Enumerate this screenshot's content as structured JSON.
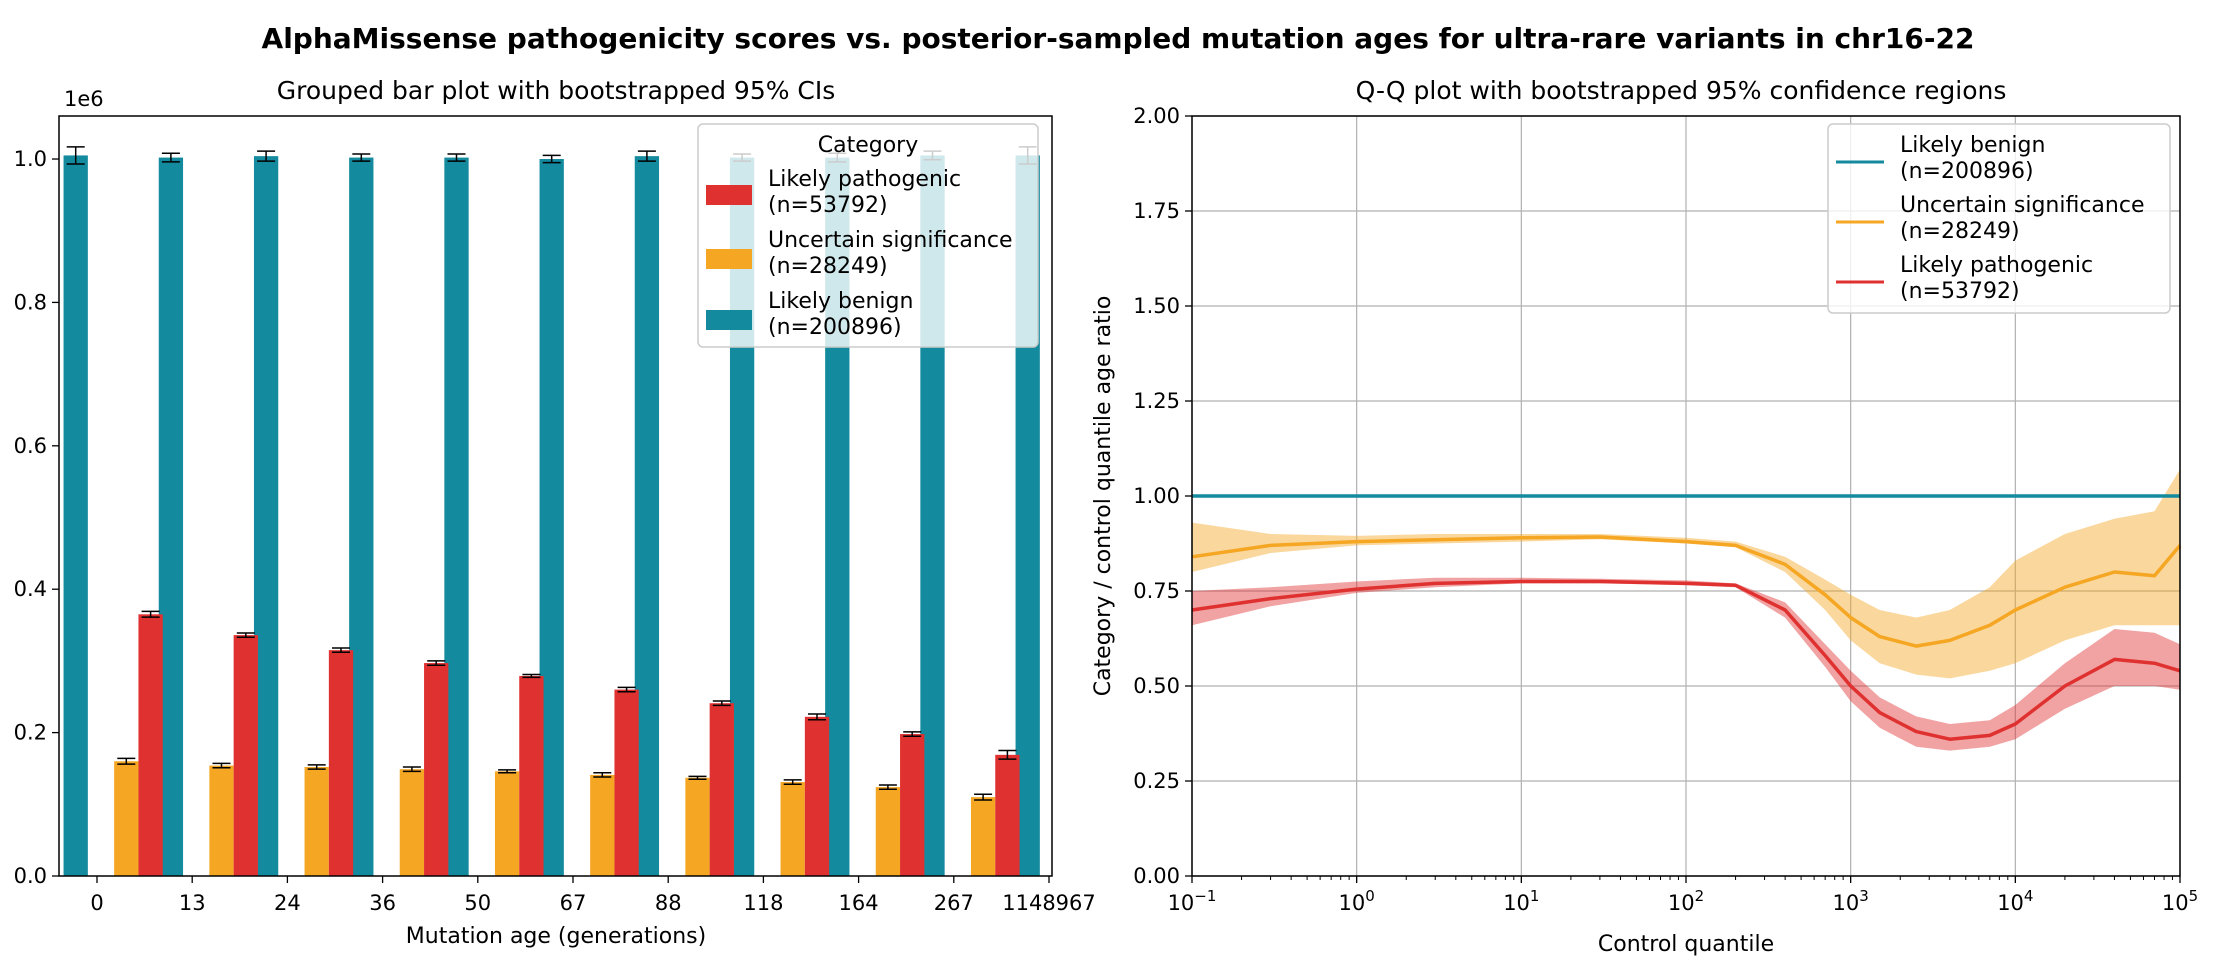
{
  "figure": {
    "suptitle": "AlphaMissense pathogenicity scores vs. posterior-sampled mutation ages for ultra-rare variants in chr16-22"
  },
  "colors": {
    "benign": "#138a9e",
    "uncertain": "#f5a623",
    "pathogenic": "#e03131",
    "grid": "#b0b0b0"
  },
  "chart_data": [
    {
      "type": "bar",
      "title": "Grouped bar plot with bootstrapped 95% CIs",
      "xlabel": "Mutation age (generations)",
      "ylabel": "",
      "scale_label": "1e6",
      "ylim": [
        0,
        1.06
      ],
      "yticks": [
        "0.0",
        "0.2",
        "0.4",
        "0.6",
        "0.8",
        "1.0"
      ],
      "ytick_values": [
        0,
        0.2,
        0.4,
        0.6,
        0.8,
        1.0
      ],
      "edge_labels": [
        "0",
        "13",
        "24",
        "36",
        "50",
        "67",
        "88",
        "118",
        "164",
        "267",
        "1148967"
      ],
      "grid": false,
      "legend": {
        "title": "Category",
        "position": "top-right",
        "entries": [
          {
            "key": "pathogenic",
            "label1": "Likely pathogenic",
            "label2": "(n=53792)"
          },
          {
            "key": "uncertain",
            "label1": "Uncertain significance",
            "label2": "(n=28249)"
          },
          {
            "key": "benign",
            "label1": "Likely benign",
            "label2": "(n=200896)"
          }
        ]
      },
      "series": [
        {
          "name": "Likely benign",
          "key": "benign",
          "values": [
            1.005,
            1.002,
            1.004,
            1.002,
            1.002,
            1.0,
            1.004,
            1.002,
            1.002,
            1.005,
            1.005
          ],
          "err": [
            0.012,
            0.006,
            0.007,
            0.005,
            0.005,
            0.005,
            0.007,
            0.005,
            0.006,
            0.006,
            0.012
          ]
        },
        {
          "name": "Uncertain significance",
          "key": "uncertain",
          "values": [
            0.16,
            0.154,
            0.152,
            0.149,
            0.146,
            0.141,
            0.137,
            0.131,
            0.124,
            0.11
          ],
          "err": [
            0.004,
            0.003,
            0.003,
            0.003,
            0.002,
            0.003,
            0.002,
            0.003,
            0.003,
            0.004
          ]
        },
        {
          "name": "Likely pathogenic",
          "key": "pathogenic",
          "values": [
            0.365,
            0.336,
            0.315,
            0.297,
            0.279,
            0.26,
            0.241,
            0.222,
            0.198,
            0.169
          ],
          "err": [
            0.004,
            0.003,
            0.003,
            0.003,
            0.002,
            0.003,
            0.003,
            0.004,
            0.003,
            0.006
          ]
        }
      ]
    },
    {
      "type": "line",
      "title": "Q-Q plot with bootstrapped 95% confidence regions",
      "xlabel": "Control quantile",
      "ylabel": "Category / control quantile age ratio",
      "xscale": "log",
      "xlim": [
        0.1,
        100000
      ],
      "ylim": [
        0,
        2
      ],
      "xticks": [
        {
          "base": "10",
          "exp": "−1"
        },
        {
          "base": "10",
          "exp": "0"
        },
        {
          "base": "10",
          "exp": "1"
        },
        {
          "base": "10",
          "exp": "2"
        },
        {
          "base": "10",
          "exp": "3"
        },
        {
          "base": "10",
          "exp": "4"
        },
        {
          "base": "10",
          "exp": "5"
        }
      ],
      "xtick_values": [
        0.1,
        1,
        10,
        100,
        1000,
        10000,
        100000
      ],
      "yticks": [
        "0.00",
        "0.25",
        "0.50",
        "0.75",
        "1.00",
        "1.25",
        "1.50",
        "1.75",
        "2.00"
      ],
      "ytick_values": [
        0,
        0.25,
        0.5,
        0.75,
        1.0,
        1.25,
        1.5,
        1.75,
        2.0
      ],
      "grid": true,
      "legend": {
        "position": "top-right",
        "entries": [
          {
            "key": "benign",
            "label1": "Likely benign",
            "label2": "(n=200896)"
          },
          {
            "key": "uncertain",
            "label1": "Uncertain significance",
            "label2": "(n=28249)"
          },
          {
            "key": "pathogenic",
            "label1": "Likely pathogenic",
            "label2": "(n=53792)"
          }
        ]
      },
      "series": [
        {
          "name": "Likely benign",
          "key": "benign",
          "x": [
            0.1,
            100000
          ],
          "y": [
            1.0,
            1.0
          ]
        },
        {
          "name": "Uncertain significance",
          "key": "uncertain",
          "x": [
            0.1,
            0.3,
            1,
            3,
            10,
            30,
            100,
            200,
            400,
            700,
            1000,
            1500,
            2500,
            4000,
            7000,
            10000,
            20000,
            40000,
            70000,
            100000
          ],
          "y": [
            0.84,
            0.87,
            0.88,
            0.885,
            0.89,
            0.892,
            0.88,
            0.87,
            0.82,
            0.74,
            0.68,
            0.63,
            0.605,
            0.62,
            0.66,
            0.7,
            0.76,
            0.8,
            0.79,
            0.87
          ],
          "lower": [
            0.8,
            0.85,
            0.87,
            0.875,
            0.88,
            0.886,
            0.875,
            0.865,
            0.8,
            0.7,
            0.62,
            0.56,
            0.53,
            0.52,
            0.54,
            0.56,
            0.62,
            0.66,
            0.66,
            0.66
          ],
          "upper": [
            0.93,
            0.9,
            0.895,
            0.9,
            0.9,
            0.9,
            0.89,
            0.88,
            0.84,
            0.78,
            0.74,
            0.7,
            0.68,
            0.7,
            0.76,
            0.83,
            0.9,
            0.94,
            0.96,
            1.07
          ]
        },
        {
          "name": "Likely pathogenic",
          "key": "pathogenic",
          "x": [
            0.1,
            0.3,
            1,
            3,
            10,
            30,
            100,
            200,
            400,
            700,
            1000,
            1500,
            2500,
            4000,
            7000,
            10000,
            20000,
            40000,
            70000,
            100000
          ],
          "y": [
            0.7,
            0.73,
            0.755,
            0.77,
            0.775,
            0.775,
            0.77,
            0.765,
            0.7,
            0.58,
            0.5,
            0.43,
            0.38,
            0.36,
            0.37,
            0.4,
            0.5,
            0.57,
            0.56,
            0.54
          ],
          "lower": [
            0.66,
            0.71,
            0.745,
            0.76,
            0.77,
            0.77,
            0.765,
            0.76,
            0.68,
            0.55,
            0.46,
            0.39,
            0.34,
            0.33,
            0.34,
            0.36,
            0.44,
            0.5,
            0.5,
            0.49
          ],
          "upper": [
            0.75,
            0.76,
            0.775,
            0.785,
            0.785,
            0.782,
            0.778,
            0.77,
            0.72,
            0.61,
            0.54,
            0.47,
            0.42,
            0.4,
            0.41,
            0.45,
            0.56,
            0.65,
            0.64,
            0.61
          ]
        }
      ]
    }
  ]
}
